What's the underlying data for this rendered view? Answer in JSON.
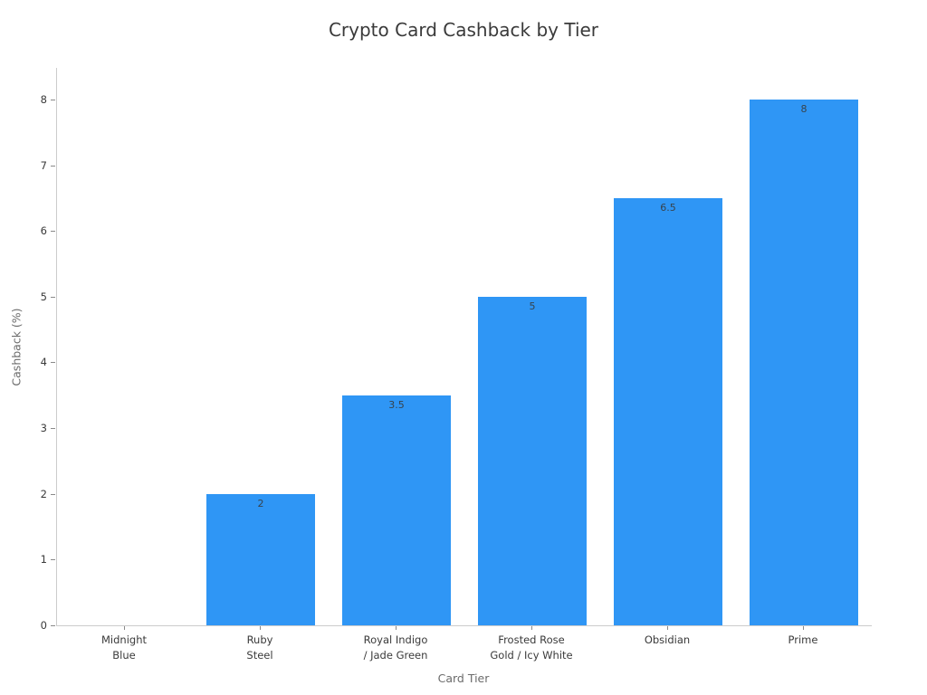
{
  "chart_data": {
    "type": "bar",
    "title": "Crypto Card Cashback by Tier",
    "xlabel": "Card Tier",
    "ylabel": "Cashback (%)",
    "categories": [
      "Midnight\nBlue",
      "Ruby\nSteel",
      "Royal Indigo\n/ Jade Green",
      "Frosted Rose\nGold / Icy White",
      "Obsidian",
      "Prime"
    ],
    "values": [
      0,
      2,
      3.5,
      5,
      6.5,
      8
    ],
    "value_labels": [
      "",
      "2",
      "3.5",
      "5",
      "6.5",
      "8"
    ],
    "yticks": [
      0,
      1,
      2,
      3,
      4,
      5,
      6,
      7,
      8
    ],
    "ylim": [
      0,
      8.48
    ],
    "grid": false,
    "legend": null,
    "bar_color": "#2f96f5",
    "spine_color": "#cccccc",
    "tick_color": "#8a8a8a",
    "text_color": "#3a3a3a",
    "axis_label_color": "#6b6b6b",
    "value_label_color": "#37434d"
  }
}
